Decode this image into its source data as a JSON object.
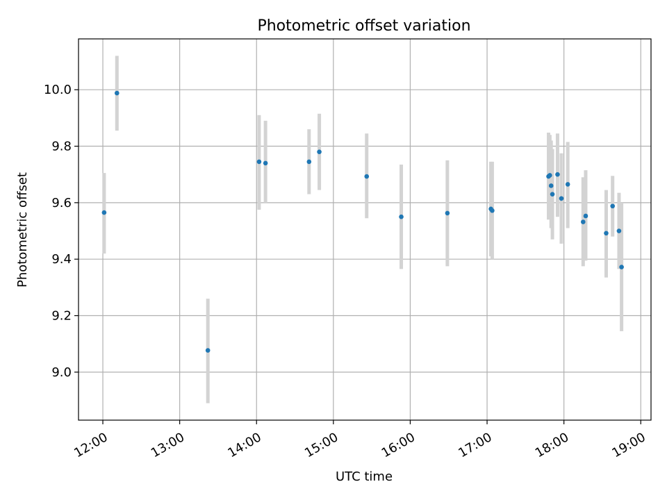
{
  "chart_data": {
    "type": "scatter",
    "title": "Photometric offset variation",
    "xlabel": "UTC time",
    "ylabel": "Photometric offset",
    "x_ticks": [
      "12:00",
      "13:00",
      "14:00",
      "15:00",
      "16:00",
      "17:00",
      "18:00",
      "19:00"
    ],
    "y_ticks": [
      "9.0",
      "9.2",
      "9.4",
      "9.6",
      "9.8",
      "10.0"
    ],
    "xlim": [
      "11:41",
      "19:08"
    ],
    "ylim": [
      8.83,
      10.18
    ],
    "grid": true,
    "colors": {
      "marker": "#1f77b4",
      "errorbar": "#d3d3d3",
      "grid": "#b0b0b0"
    },
    "points": [
      {
        "time": "12:01",
        "y": 9.565,
        "low": 9.42,
        "high": 9.705
      },
      {
        "time": "12:11",
        "y": 9.988,
        "low": 9.855,
        "high": 10.12
      },
      {
        "time": "13:22",
        "y": 9.077,
        "low": 8.89,
        "high": 9.26
      },
      {
        "time": "14:02",
        "y": 9.745,
        "low": 9.575,
        "high": 9.91
      },
      {
        "time": "14:07",
        "y": 9.74,
        "low": 9.6,
        "high": 9.89
      },
      {
        "time": "14:41",
        "y": 9.745,
        "low": 9.63,
        "high": 9.86
      },
      {
        "time": "14:49",
        "y": 9.78,
        "low": 9.645,
        "high": 9.915
      },
      {
        "time": "15:26",
        "y": 9.693,
        "low": 9.545,
        "high": 9.845
      },
      {
        "time": "15:53",
        "y": 9.55,
        "low": 9.365,
        "high": 9.735
      },
      {
        "time": "16:29",
        "y": 9.563,
        "low": 9.375,
        "high": 9.75
      },
      {
        "time": "17:03",
        "y": 9.578,
        "low": 9.41,
        "high": 9.745
      },
      {
        "time": "17:04",
        "y": 9.572,
        "low": 9.4,
        "high": 9.745
      },
      {
        "time": "17:48",
        "y": 9.693,
        "low": 9.54,
        "high": 9.848
      },
      {
        "time": "17:49",
        "y": 9.697,
        "low": 9.55,
        "high": 9.84
      },
      {
        "time": "17:50",
        "y": 9.66,
        "low": 9.51,
        "high": 9.82
      },
      {
        "time": "17:51",
        "y": 9.63,
        "low": 9.47,
        "high": 9.79
      },
      {
        "time": "17:55",
        "y": 9.7,
        "low": 9.55,
        "high": 9.845
      },
      {
        "time": "17:58",
        "y": 9.615,
        "low": 9.455,
        "high": 9.775
      },
      {
        "time": "18:03",
        "y": 9.665,
        "low": 9.51,
        "high": 9.815
      },
      {
        "time": "18:15",
        "y": 9.532,
        "low": 9.375,
        "high": 9.69
      },
      {
        "time": "18:17",
        "y": 9.553,
        "low": 9.395,
        "high": 9.715
      },
      {
        "time": "18:33",
        "y": 9.492,
        "low": 9.335,
        "high": 9.645
      },
      {
        "time": "18:38",
        "y": 9.588,
        "low": 9.48,
        "high": 9.695
      },
      {
        "time": "18:43",
        "y": 9.5,
        "low": 9.365,
        "high": 9.635
      },
      {
        "time": "18:45",
        "y": 9.372,
        "low": 9.145,
        "high": 9.6
      }
    ]
  }
}
